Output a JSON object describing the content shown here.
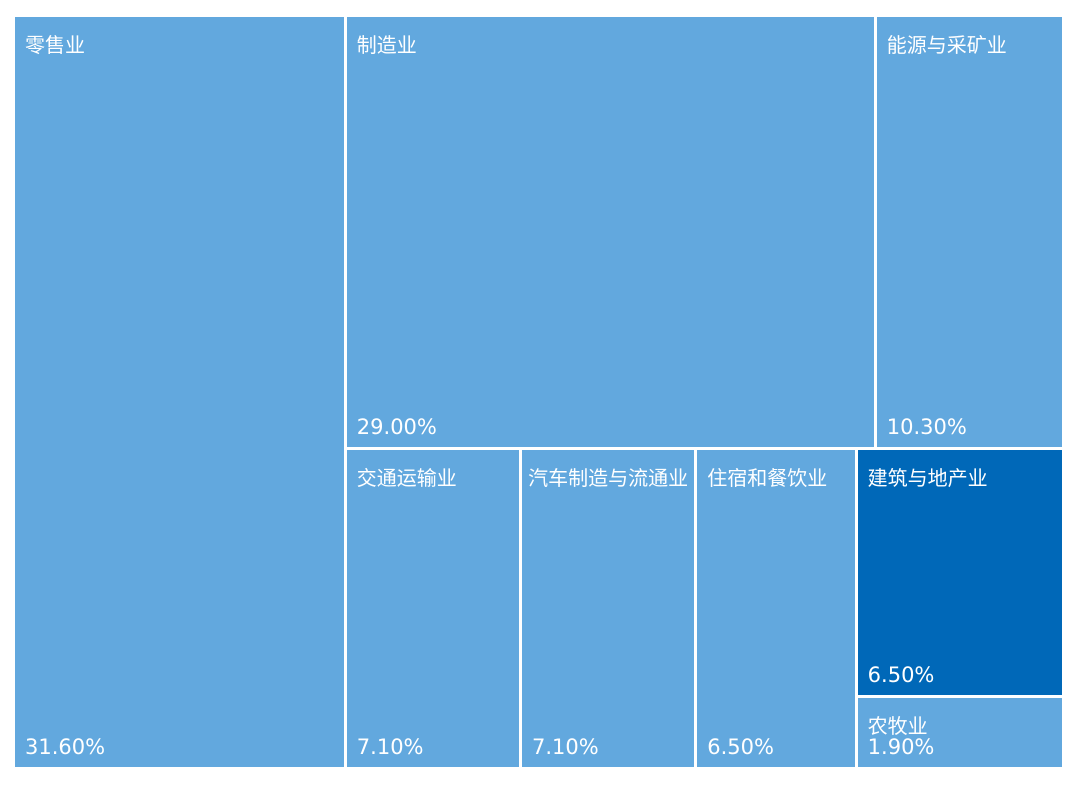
{
  "chart_data": {
    "type": "treemap",
    "categories": [
      "零售业",
      "制造业",
      "能源与采矿业",
      "交通运输业",
      "汽车制造与流通业",
      "住宿和餐饮业",
      "建筑与地产业",
      "农牧业"
    ],
    "values": [
      31.6,
      29.0,
      10.3,
      7.1,
      7.1,
      6.5,
      6.5,
      1.9
    ],
    "value_labels": [
      "31.60%",
      "29.00%",
      "10.30%",
      "7.10%",
      "7.10%",
      "6.50%",
      "6.50%",
      "1.90%"
    ],
    "colors": [
      "#62a8de",
      "#62a8de",
      "#62a8de",
      "#62a8de",
      "#62a8de",
      "#62a8de",
      "#0068b8",
      "#62a8de"
    ]
  }
}
